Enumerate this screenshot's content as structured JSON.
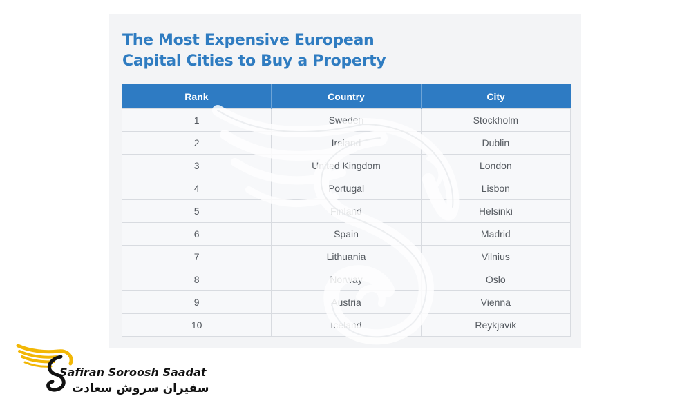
{
  "title": {
    "line1": "The Most Expensive European",
    "line2": "Capital Cities to Buy a Property"
  },
  "table": {
    "headers": [
      "Rank",
      "Country",
      "City"
    ],
    "rows": [
      [
        "1",
        "Sweden",
        "Stockholm"
      ],
      [
        "2",
        "Ireland",
        "Dublin"
      ],
      [
        "3",
        "United Kingdom",
        "London"
      ],
      [
        "4",
        "Portugal",
        "Lisbon"
      ],
      [
        "5",
        "Finland",
        "Helsinki"
      ],
      [
        "6",
        "Spain",
        "Madrid"
      ],
      [
        "7",
        "Lithuania",
        "Vilnius"
      ],
      [
        "8",
        "Norway",
        "Oslo"
      ],
      [
        "9",
        "Austria",
        "Vienna"
      ],
      [
        "10",
        "Iceland",
        "Reykjavik"
      ]
    ]
  },
  "brand": {
    "name_en": "Safiran Soroosh Saadat",
    "name_fa": "سفیران سروش سعادت"
  },
  "colors": {
    "title": "#2f7cc1",
    "header_bg": "#2e7bc3",
    "logo_gold": "#f2b705"
  },
  "icons": {
    "watermark": "swan-s-watermark-icon",
    "logo": "winged-swan-logo-icon"
  }
}
